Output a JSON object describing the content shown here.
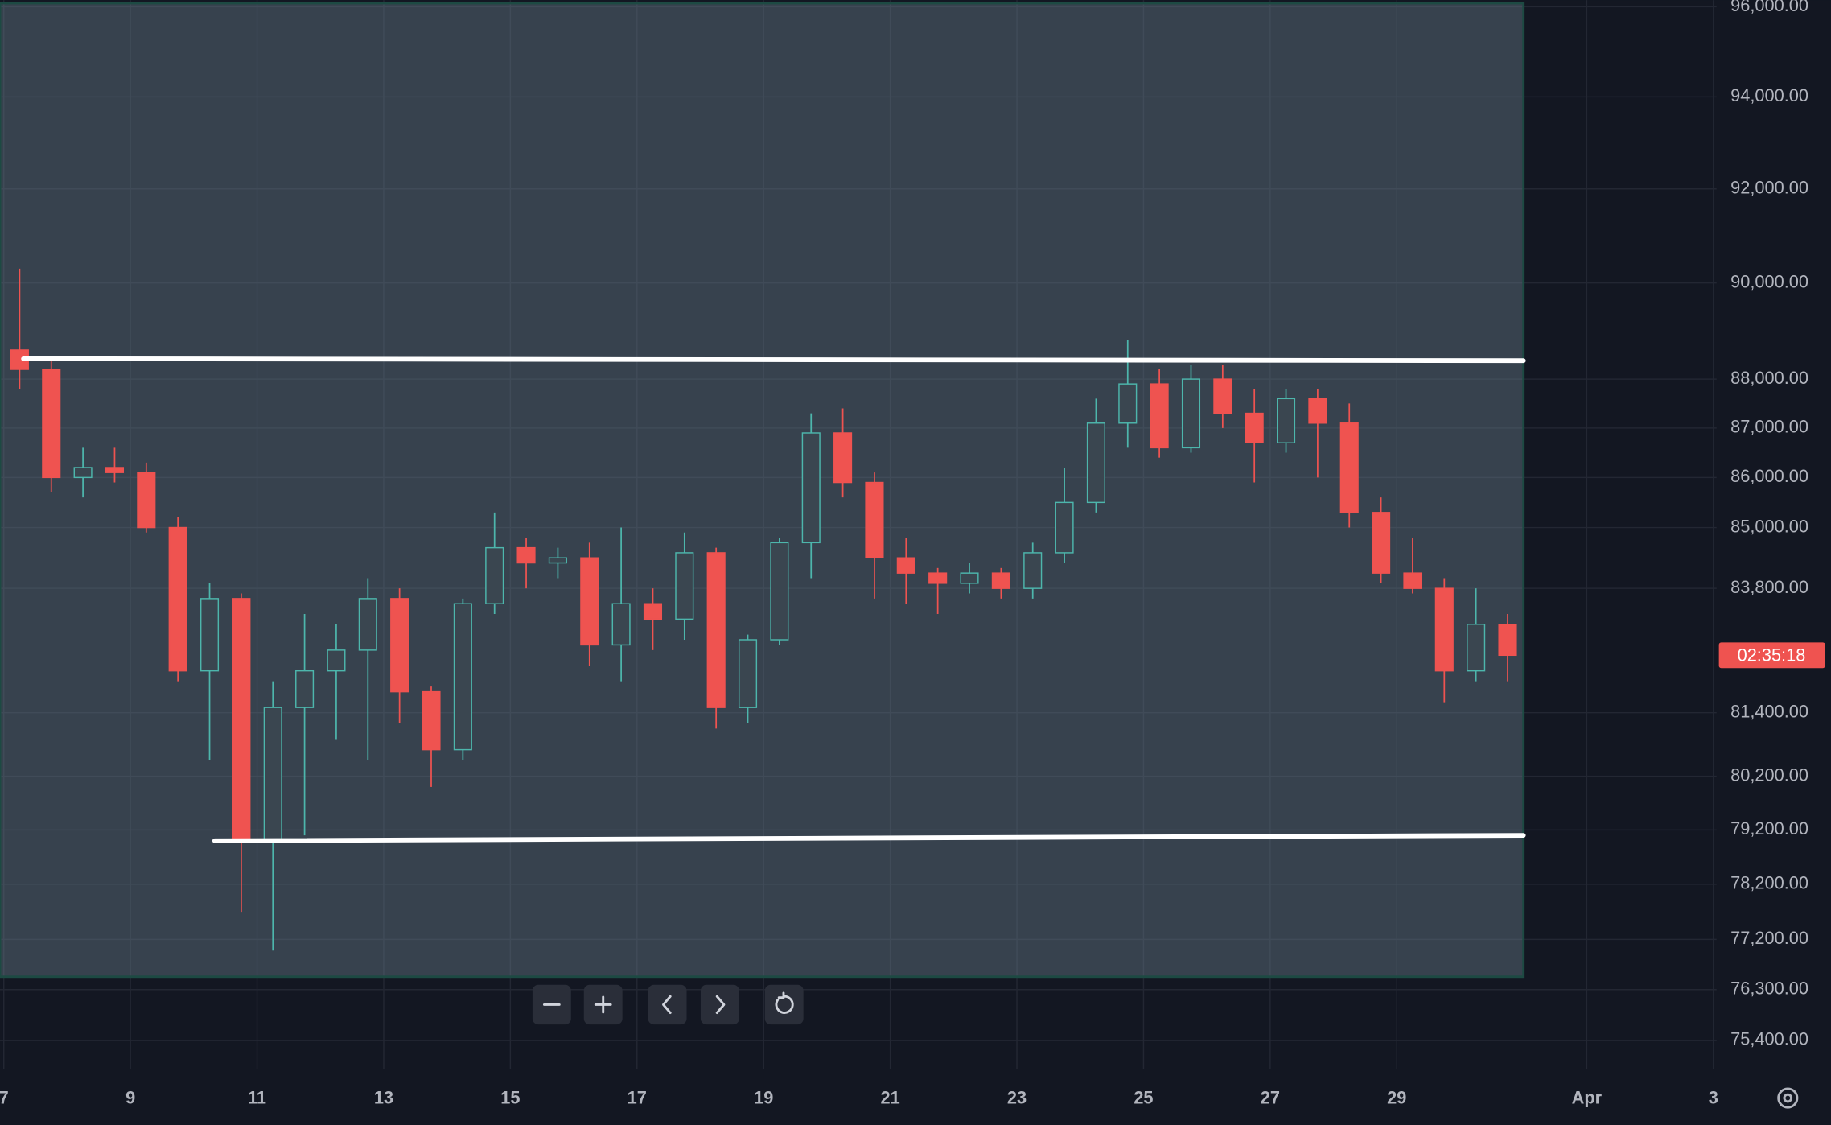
{
  "chart_data": {
    "type": "candlestick",
    "log_scale": true,
    "grid": true,
    "ylim": [
      74900,
      96150
    ],
    "yticks": [
      {
        "value": 96000,
        "label": "96,000.00"
      },
      {
        "value": 94000,
        "label": "94,000.00"
      },
      {
        "value": 92000,
        "label": "92,000.00"
      },
      {
        "value": 90000,
        "label": "90,000.00"
      },
      {
        "value": 88000,
        "label": "88,000.00"
      },
      {
        "value": 87000,
        "label": "87,000.00"
      },
      {
        "value": 86000,
        "label": "86,000.00"
      },
      {
        "value": 85000,
        "label": "85,000.00"
      },
      {
        "value": 83800,
        "label": "83,800.00"
      },
      {
        "value": 81400,
        "label": "81,400.00"
      },
      {
        "value": 80200,
        "label": "80,200.00"
      },
      {
        "value": 79200,
        "label": "79,200.00"
      },
      {
        "value": 78200,
        "label": "78,200.00"
      },
      {
        "value": 77200,
        "label": "77,200.00"
      },
      {
        "value": 76300,
        "label": "76,300.00"
      },
      {
        "value": 75400,
        "label": "75,400.00"
      }
    ],
    "xlim": [
      6.94,
      34.05
    ],
    "xticks": [
      7,
      9,
      11,
      13,
      15,
      17,
      19,
      21,
      23,
      25,
      27,
      29,
      {
        "value": 32,
        "label": "Apr"
      },
      {
        "value": 34,
        "label": "3"
      }
    ],
    "up_color": "#4db6ac",
    "down_color": "#ef5350",
    "candles": {
      "x": [
        7.0,
        7.5,
        8.0,
        8.5,
        9.0,
        9.5,
        10.0,
        10.5,
        11.0,
        11.5,
        12.0,
        12.5,
        13.0,
        13.5,
        14.0,
        14.5,
        15.0,
        15.5,
        16.0,
        16.5,
        17.0,
        17.5,
        18.0,
        18.5,
        19.0,
        19.5,
        20.0,
        20.5,
        21.0,
        21.5,
        22.0,
        22.5,
        23.0,
        23.5,
        24.0,
        24.5,
        25.0,
        25.5,
        26.0,
        26.5,
        27.0,
        27.5,
        28.0,
        28.5,
        29.0,
        29.5,
        30.0,
        30.5
      ],
      "open": [
        88600,
        88200,
        86000,
        86200,
        86100,
        85000,
        82200,
        83600,
        79000,
        81500,
        82200,
        82600,
        83600,
        81800,
        80700,
        83500,
        84600,
        84300,
        84400,
        82700,
        83500,
        83200,
        84500,
        81500,
        82800,
        84700,
        86900,
        85900,
        84400,
        84100,
        83900,
        84100,
        83800,
        84500,
        85500,
        87100,
        87900,
        86600,
        88000,
        87300,
        86700,
        87600,
        87100,
        85300,
        84100,
        83800,
        82200,
        83100
      ],
      "high": [
        90300,
        88400,
        86600,
        86600,
        86300,
        85200,
        83900,
        83700,
        82000,
        83300,
        83100,
        84000,
        83800,
        81900,
        83600,
        85300,
        84800,
        84600,
        84700,
        85000,
        83800,
        84900,
        84600,
        82900,
        84800,
        87300,
        87400,
        86100,
        84800,
        84200,
        84300,
        84200,
        84700,
        86200,
        87600,
        88800,
        88200,
        88300,
        88300,
        87800,
        87800,
        87800,
        87500,
        85600,
        84800,
        84000,
        83800,
        83300
      ],
      "low": [
        87800,
        85700,
        85600,
        85900,
        84900,
        82000,
        80500,
        77700,
        77000,
        79100,
        80900,
        80500,
        81200,
        80000,
        80500,
        83300,
        83800,
        84000,
        82300,
        82000,
        82600,
        82800,
        81100,
        81200,
        82700,
        84000,
        85600,
        83600,
        83500,
        83300,
        83700,
        83600,
        83600,
        84300,
        85300,
        86600,
        86400,
        86500,
        87000,
        85900,
        86500,
        86000,
        85000,
        83900,
        83700,
        81600,
        82000,
        82000
      ],
      "close": [
        88200,
        86000,
        86200,
        86100,
        85000,
        82200,
        83600,
        79000,
        81500,
        82200,
        82600,
        83600,
        81800,
        80700,
        83500,
        84600,
        84300,
        84400,
        82700,
        83500,
        83200,
        84500,
        81500,
        82800,
        84700,
        86900,
        85900,
        84400,
        84100,
        83900,
        84100,
        83800,
        84500,
        85500,
        87100,
        87900,
        86600,
        88000,
        87300,
        86700,
        87600,
        87100,
        85300,
        84100,
        83800,
        82200,
        83100,
        82500
      ]
    },
    "rectangle": {
      "x": [
        6.94,
        31.0
      ],
      "y": [
        76530,
        96080
      ]
    },
    "trend_lines": [
      {
        "x": [
          7.31,
          31.0
        ],
        "y": [
          88420,
          88380
        ]
      },
      {
        "x": [
          10.33,
          31.0
        ],
        "y": [
          79000,
          79100
        ]
      }
    ],
    "countdown": "02:35:18"
  }
}
